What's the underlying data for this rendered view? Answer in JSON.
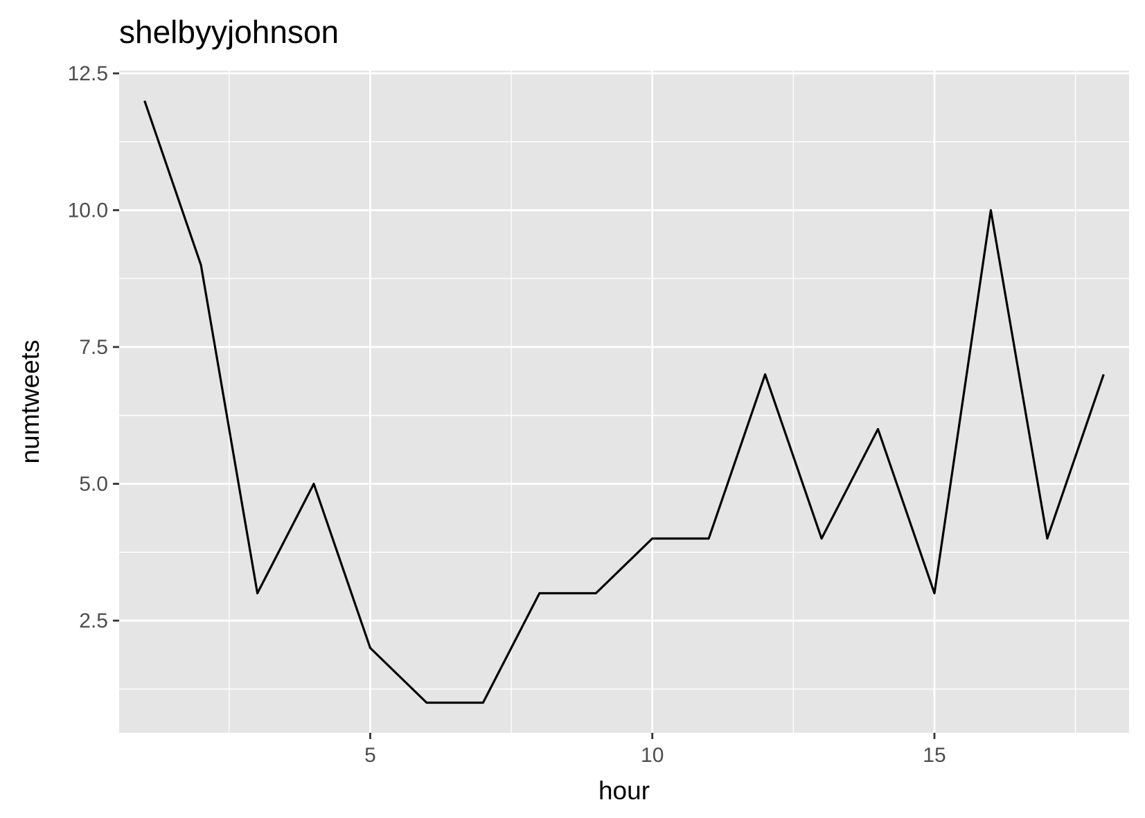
{
  "chart_data": {
    "type": "line",
    "title": "shelbyyjohnson",
    "xlabel": "hour",
    "ylabel": "numtweets",
    "xlim": [
      0.55,
      18.45
    ],
    "ylim": [
      0.45,
      12.55
    ],
    "x_ticks": [
      5,
      10,
      15
    ],
    "x_tick_labels": [
      "5",
      "10",
      "15"
    ],
    "x_minor_ticks": [
      2.5,
      7.5,
      12.5,
      17.5
    ],
    "y_ticks": [
      2.5,
      5.0,
      7.5,
      10.0,
      12.5
    ],
    "y_tick_labels": [
      "2.5",
      "5.0",
      "7.5",
      "10.0",
      "12.5"
    ],
    "y_minor_ticks": [
      1.25,
      3.75,
      6.25,
      8.75,
      11.25
    ],
    "grid": true,
    "colors": {
      "panel": "#e5e5e5",
      "grid": "#ffffff",
      "line": "#000000",
      "tick_text": "#4d4d4d"
    },
    "series": [
      {
        "x": [
          1,
          2,
          3,
          4,
          5,
          6,
          7,
          8,
          9,
          10,
          11,
          12,
          13,
          14,
          15,
          16,
          17,
          18
        ],
        "values": [
          12,
          9,
          3,
          5,
          2,
          1,
          1,
          3,
          3,
          4,
          4,
          7,
          4,
          6,
          3,
          10,
          4,
          7
        ]
      }
    ]
  }
}
